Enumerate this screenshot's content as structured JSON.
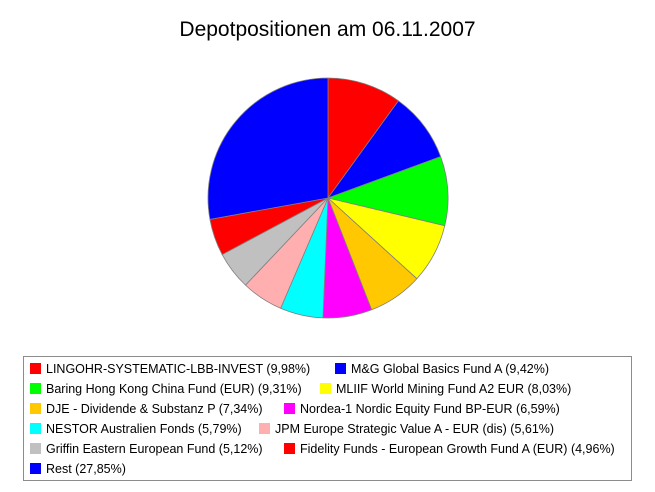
{
  "chart_data": {
    "type": "pie",
    "title": "Depotpositionen am 06.11.2007",
    "series": [
      {
        "label": "LINGOHR-SYSTEMATIC-LBB-INVEST (9,98%)",
        "value": 9.98,
        "color": "#ff0000"
      },
      {
        "label": "M&G Global Basics Fund A (9,42%)",
        "value": 9.42,
        "color": "#0000ff"
      },
      {
        "label": "Baring Hong Kong China Fund (EUR) (9,31%)",
        "value": 9.31,
        "color": "#00ff00"
      },
      {
        "label": "MLIIF World Mining Fund A2 EUR (8,03%)",
        "value": 8.03,
        "color": "#ffff00"
      },
      {
        "label": "DJE - Dividende & Substanz P (7,34%)",
        "value": 7.34,
        "color": "#ffc800"
      },
      {
        "label": "Nordea-1 Nordic Equity Fund BP-EUR (6,59%)",
        "value": 6.59,
        "color": "#ff00ff"
      },
      {
        "label": "NESTOR Australien Fonds (5,79%)",
        "value": 5.79,
        "color": "#00ffff"
      },
      {
        "label": "JPM Europe Strategic Value A - EUR (dis) (5,61%)",
        "value": 5.61,
        "color": "#ffafaf"
      },
      {
        "label": "Griffin Eastern European Fund (5,12%)",
        "value": 5.12,
        "color": "#c0c0c0"
      },
      {
        "label": "Fidelity Funds - European Growth Fund A (EUR) (4,96%)",
        "value": 4.96,
        "color": "#ff0000"
      },
      {
        "label": "Rest (27,85%)",
        "value": 27.85,
        "color": "#0000ff"
      }
    ],
    "start": "12 o'clock",
    "direction": "clockwise",
    "slice_border_color": "#808080",
    "legend_position": "bottom"
  }
}
